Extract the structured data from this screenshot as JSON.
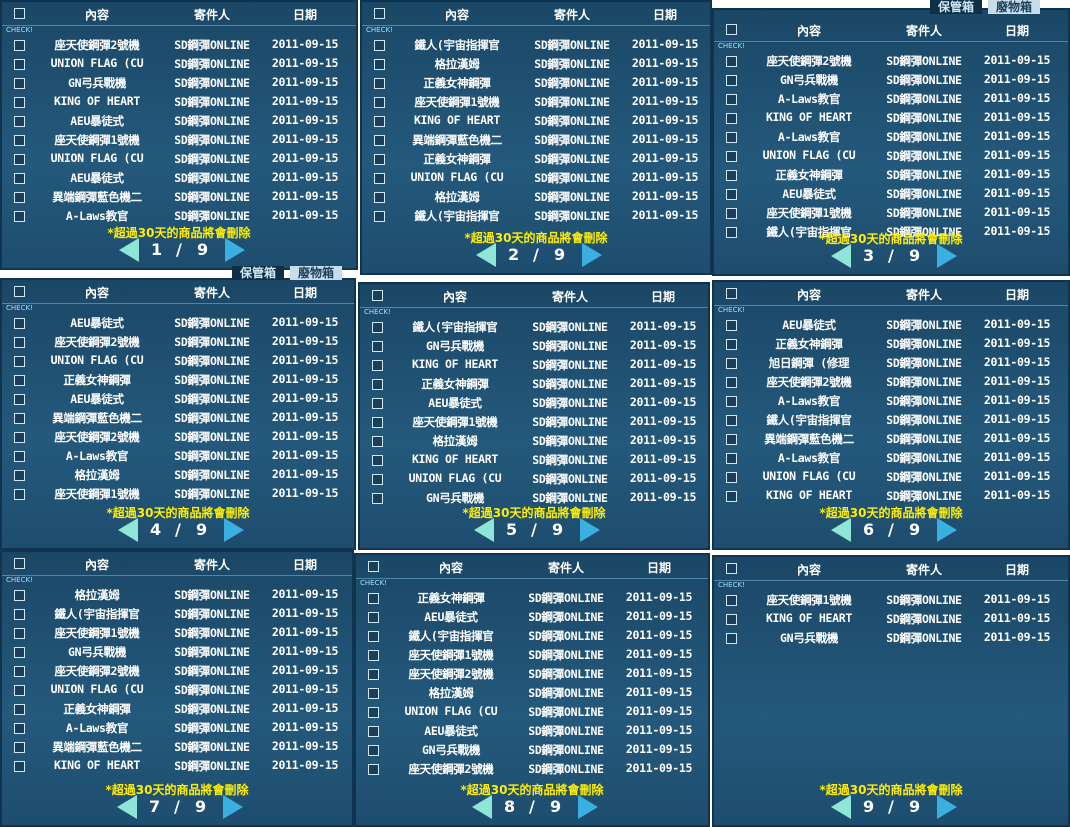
{
  "headers": [
    "內容",
    "寄件人",
    "日期"
  ],
  "check_label": "CHECK!",
  "notice": "*超過30天的商品將會刪除",
  "page_separator": "/",
  "page_total": "9",
  "tabs": [
    "保管箱",
    "廢物箱"
  ],
  "panels": [
    {
      "page": "1",
      "rows": [
        [
          "座天使鋼彈2號機",
          "SD鋼彈ONLINE",
          "2011-09-15"
        ],
        [
          "UNION FLAG (CU",
          "SD鋼彈ONLINE",
          "2011-09-15"
        ],
        [
          "GN弓兵戰機",
          "SD鋼彈ONLINE",
          "2011-09-15"
        ],
        [
          "KING OF HEART",
          "SD鋼彈ONLINE",
          "2011-09-15"
        ],
        [
          "AEU暴徒式",
          "SD鋼彈ONLINE",
          "2011-09-15"
        ],
        [
          "座天使鋼彈1號機",
          "SD鋼彈ONLINE",
          "2011-09-15"
        ],
        [
          "UNION FLAG (CU",
          "SD鋼彈ONLINE",
          "2011-09-15"
        ],
        [
          "AEU暴徒式",
          "SD鋼彈ONLINE",
          "2011-09-15"
        ],
        [
          "異端鋼彈藍色機二",
          "SD鋼彈ONLINE",
          "2011-09-15"
        ],
        [
          "A-Laws教官",
          "SD鋼彈ONLINE",
          "2011-09-15"
        ]
      ]
    },
    {
      "page": "2",
      "rows": [
        [
          "鐵人(宇宙指揮官",
          "SD鋼彈ONLINE",
          "2011-09-15"
        ],
        [
          "格拉漢姆",
          "SD鋼彈ONLINE",
          "2011-09-15"
        ],
        [
          "正義女神鋼彈",
          "SD鋼彈ONLINE",
          "2011-09-15"
        ],
        [
          "座天使鋼彈1號機",
          "SD鋼彈ONLINE",
          "2011-09-15"
        ],
        [
          "KING OF HEART",
          "SD鋼彈ONLINE",
          "2011-09-15"
        ],
        [
          "異端鋼彈藍色機二",
          "SD鋼彈ONLINE",
          "2011-09-15"
        ],
        [
          "正義女神鋼彈",
          "SD鋼彈ONLINE",
          "2011-09-15"
        ],
        [
          "UNION FLAG (CU",
          "SD鋼彈ONLINE",
          "2011-09-15"
        ],
        [
          "格拉漢姆",
          "SD鋼彈ONLINE",
          "2011-09-15"
        ],
        [
          "鐵人(宇宙指揮官",
          "SD鋼彈ONLINE",
          "2011-09-15"
        ]
      ]
    },
    {
      "page": "3",
      "rows": [
        [
          "座天使鋼彈2號機",
          "SD鋼彈ONLINE",
          "2011-09-15"
        ],
        [
          "GN弓兵戰機",
          "SD鋼彈ONLINE",
          "2011-09-15"
        ],
        [
          "A-Laws教官",
          "SD鋼彈ONLINE",
          "2011-09-15"
        ],
        [
          "KING OF HEART",
          "SD鋼彈ONLINE",
          "2011-09-15"
        ],
        [
          "A-Laws教官",
          "SD鋼彈ONLINE",
          "2011-09-15"
        ],
        [
          "UNION FLAG (CU",
          "SD鋼彈ONLINE",
          "2011-09-15"
        ],
        [
          "正義女神鋼彈",
          "SD鋼彈ONLINE",
          "2011-09-15"
        ],
        [
          "AEU暴徒式",
          "SD鋼彈ONLINE",
          "2011-09-15"
        ],
        [
          "座天使鋼彈1號機",
          "SD鋼彈ONLINE",
          "2011-09-15"
        ],
        [
          "鐵人(宇宙指揮官",
          "SD鋼彈ONLINE",
          "2011-09-15"
        ]
      ]
    },
    {
      "page": "4",
      "rows": [
        [
          "AEU暴徒式",
          "SD鋼彈ONLINE",
          "2011-09-15"
        ],
        [
          "座天使鋼彈2號機",
          "SD鋼彈ONLINE",
          "2011-09-15"
        ],
        [
          "UNION FLAG (CU",
          "SD鋼彈ONLINE",
          "2011-09-15"
        ],
        [
          "正義女神鋼彈",
          "SD鋼彈ONLINE",
          "2011-09-15"
        ],
        [
          "AEU暴徒式",
          "SD鋼彈ONLINE",
          "2011-09-15"
        ],
        [
          "異端鋼彈藍色機二",
          "SD鋼彈ONLINE",
          "2011-09-15"
        ],
        [
          "座天使鋼彈2號機",
          "SD鋼彈ONLINE",
          "2011-09-15"
        ],
        [
          "A-Laws教官",
          "SD鋼彈ONLINE",
          "2011-09-15"
        ],
        [
          "格拉漢姆",
          "SD鋼彈ONLINE",
          "2011-09-15"
        ],
        [
          "座天使鋼彈1號機",
          "SD鋼彈ONLINE",
          "2011-09-15"
        ]
      ]
    },
    {
      "page": "5",
      "rows": [
        [
          "鐵人(宇宙指揮官",
          "SD鋼彈ONLINE",
          "2011-09-15"
        ],
        [
          "GN弓兵戰機",
          "SD鋼彈ONLINE",
          "2011-09-15"
        ],
        [
          "KING OF HEART",
          "SD鋼彈ONLINE",
          "2011-09-15"
        ],
        [
          "正義女神鋼彈",
          "SD鋼彈ONLINE",
          "2011-09-15"
        ],
        [
          "AEU暴徒式",
          "SD鋼彈ONLINE",
          "2011-09-15"
        ],
        [
          "座天使鋼彈1號機",
          "SD鋼彈ONLINE",
          "2011-09-15"
        ],
        [
          "格拉漢姆",
          "SD鋼彈ONLINE",
          "2011-09-15"
        ],
        [
          "KING OF HEART",
          "SD鋼彈ONLINE",
          "2011-09-15"
        ],
        [
          "UNION FLAG (CU",
          "SD鋼彈ONLINE",
          "2011-09-15"
        ],
        [
          "GN弓兵戰機",
          "SD鋼彈ONLINE",
          "2011-09-15"
        ]
      ]
    },
    {
      "page": "6",
      "rows": [
        [
          "AEU暴徒式",
          "SD鋼彈ONLINE",
          "2011-09-15"
        ],
        [
          "正義女神鋼彈",
          "SD鋼彈ONLINE",
          "2011-09-15"
        ],
        [
          "旭日鋼彈 (修理",
          "SD鋼彈ONLINE",
          "2011-09-15"
        ],
        [
          "座天使鋼彈2號機",
          "SD鋼彈ONLINE",
          "2011-09-15"
        ],
        [
          "A-Laws教官",
          "SD鋼彈ONLINE",
          "2011-09-15"
        ],
        [
          "鐵人(宇宙指揮官",
          "SD鋼彈ONLINE",
          "2011-09-15"
        ],
        [
          "異端鋼彈藍色機二",
          "SD鋼彈ONLINE",
          "2011-09-15"
        ],
        [
          "A-Laws教官",
          "SD鋼彈ONLINE",
          "2011-09-15"
        ],
        [
          "UNION FLAG (CU",
          "SD鋼彈ONLINE",
          "2011-09-15"
        ],
        [
          "KING OF HEART",
          "SD鋼彈ONLINE",
          "2011-09-15"
        ]
      ]
    },
    {
      "page": "7",
      "rows": [
        [
          "格拉漢姆",
          "SD鋼彈ONLINE",
          "2011-09-15"
        ],
        [
          "鐵人(宇宙指揮官",
          "SD鋼彈ONLINE",
          "2011-09-15"
        ],
        [
          "座天使鋼彈1號機",
          "SD鋼彈ONLINE",
          "2011-09-15"
        ],
        [
          "GN弓兵戰機",
          "SD鋼彈ONLINE",
          "2011-09-15"
        ],
        [
          "座天使鋼彈2號機",
          "SD鋼彈ONLINE",
          "2011-09-15"
        ],
        [
          "UNION FLAG (CU",
          "SD鋼彈ONLINE",
          "2011-09-15"
        ],
        [
          "正義女神鋼彈",
          "SD鋼彈ONLINE",
          "2011-09-15"
        ],
        [
          "A-Laws教官",
          "SD鋼彈ONLINE",
          "2011-09-15"
        ],
        [
          "異端鋼彈藍色機二",
          "SD鋼彈ONLINE",
          "2011-09-15"
        ],
        [
          "KING OF HEART",
          "SD鋼彈ONLINE",
          "2011-09-15"
        ]
      ]
    },
    {
      "page": "8",
      "rows": [
        [
          "正義女神鋼彈",
          "SD鋼彈ONLINE",
          "2011-09-15"
        ],
        [
          "AEU暴徒式",
          "SD鋼彈ONLINE",
          "2011-09-15"
        ],
        [
          "鐵人(宇宙指揮官",
          "SD鋼彈ONLINE",
          "2011-09-15"
        ],
        [
          "座天使鋼彈1號機",
          "SD鋼彈ONLINE",
          "2011-09-15"
        ],
        [
          "座天使鋼彈2號機",
          "SD鋼彈ONLINE",
          "2011-09-15"
        ],
        [
          "格拉漢姆",
          "SD鋼彈ONLINE",
          "2011-09-15"
        ],
        [
          "UNION FLAG (CU",
          "SD鋼彈ONLINE",
          "2011-09-15"
        ],
        [
          "AEU暴徒式",
          "SD鋼彈ONLINE",
          "2011-09-15"
        ],
        [
          "GN弓兵戰機",
          "SD鋼彈ONLINE",
          "2011-09-15"
        ],
        [
          "座天使鋼彈2號機",
          "SD鋼彈ONLINE",
          "2011-09-15"
        ]
      ]
    },
    {
      "page": "9",
      "rows": [
        [
          "座天使鋼彈1號機",
          "SD鋼彈ONLINE",
          "2011-09-15"
        ],
        [
          "KING OF HEART",
          "SD鋼彈ONLINE",
          "2011-09-15"
        ],
        [
          "GN弓兵戰機",
          "SD鋼彈ONLINE",
          "2011-09-15"
        ]
      ]
    }
  ]
}
